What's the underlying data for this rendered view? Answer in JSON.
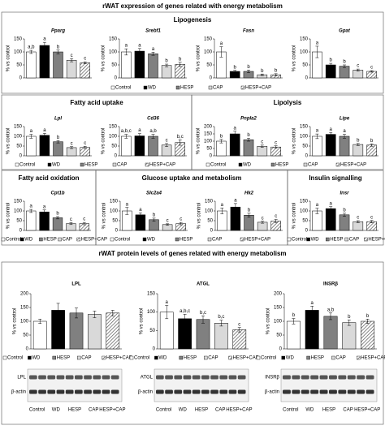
{
  "title": "rWAT expression of genes related with energy metabolism",
  "sections": [
    "Lipogenesis",
    "Fatty acid uptake",
    "Lipolysis",
    "Fatty acid oxidation",
    "Glucose uptake and metabolism",
    "Insulin signalling"
  ],
  "protein_title": "rWAT protein levels of genes related with energy metabolism",
  "blot_lanes": [
    "Control",
    "WD",
    "HESP",
    "CAP",
    "HESP+CAP"
  ],
  "blots": [
    {
      "rows": [
        "LPL",
        "β-actin"
      ]
    },
    {
      "rows": [
        "ATGL",
        "β-actin"
      ]
    },
    {
      "rows": [
        "INSRβ",
        "β-actin"
      ]
    }
  ],
  "chart_data": [
    {
      "type": "bar",
      "title": "Pparg",
      "ylabel": "% vs control",
      "categories": [
        "Control",
        "WD",
        "HESP",
        "CAP",
        "HESP+CAP"
      ],
      "values": [
        100,
        125,
        100,
        68,
        58
      ],
      "errors": [
        6,
        12,
        7,
        6,
        4
      ],
      "annotations": [
        "a,b",
        "a",
        "b",
        "c",
        "c"
      ],
      "colors": [
        "#ffffff",
        "#000000",
        "#808080",
        "#d9d9d9",
        "#ffffff"
      ],
      "hatch": [
        false,
        false,
        false,
        false,
        true
      ],
      "ylim": [
        0,
        150
      ],
      "yticks": [
        0,
        50,
        100,
        150
      ]
    },
    {
      "type": "bar",
      "title": "Srebf1",
      "ylabel": "% vs control",
      "categories": [
        "Control",
        "WD",
        "HESP",
        "CAP",
        "HESP+CAP"
      ],
      "values": [
        100,
        103,
        93,
        48,
        52
      ],
      "errors": [
        12,
        10,
        6,
        5,
        8
      ],
      "annotations": [
        "a",
        "a",
        "a",
        "b",
        "b"
      ],
      "colors": [
        "#ffffff",
        "#000000",
        "#808080",
        "#d9d9d9",
        "#ffffff"
      ],
      "hatch": [
        false,
        false,
        false,
        false,
        true
      ],
      "ylim": [
        0,
        150
      ],
      "yticks": [
        0,
        50,
        100,
        150
      ]
    },
    {
      "type": "bar",
      "title": "Fasn",
      "ylabel": "% vs control",
      "categories": [
        "Control",
        "WD",
        "HESP",
        "CAP",
        "HESP+CAP"
      ],
      "values": [
        100,
        25,
        25,
        12,
        12
      ],
      "errors": [
        20,
        4,
        5,
        3,
        4
      ],
      "annotations": [
        "a",
        "b",
        "b",
        "b",
        "b"
      ],
      "colors": [
        "#ffffff",
        "#000000",
        "#808080",
        "#d9d9d9",
        "#ffffff"
      ],
      "hatch": [
        false,
        false,
        false,
        false,
        true
      ],
      "ylim": [
        0,
        150
      ],
      "yticks": [
        0,
        50,
        100,
        150
      ]
    },
    {
      "type": "bar",
      "title": "Gpat",
      "ylabel": "% vs control",
      "categories": [
        "Control",
        "WD",
        "HESP",
        "CAP",
        "HESP+CAP"
      ],
      "values": [
        100,
        50,
        45,
        30,
        25
      ],
      "errors": [
        22,
        6,
        5,
        4,
        3
      ],
      "annotations": [
        "a",
        "b",
        "b",
        "c",
        "c"
      ],
      "colors": [
        "#ffffff",
        "#000000",
        "#808080",
        "#d9d9d9",
        "#ffffff"
      ],
      "hatch": [
        false,
        false,
        false,
        false,
        true
      ],
      "ylim": [
        0,
        150
      ],
      "yticks": [
        0,
        50,
        100,
        150
      ]
    },
    {
      "type": "bar",
      "title": "Lpl",
      "ylabel": "% vs control",
      "categories": [
        "Control",
        "WD",
        "HESP",
        "CAP",
        "HESP+CAP"
      ],
      "values": [
        100,
        105,
        72,
        42,
        43
      ],
      "errors": [
        10,
        10,
        6,
        5,
        6
      ],
      "annotations": [
        "a",
        "a",
        "b",
        "c",
        "c"
      ],
      "colors": [
        "#ffffff",
        "#000000",
        "#808080",
        "#d9d9d9",
        "#ffffff"
      ],
      "hatch": [
        false,
        false,
        false,
        false,
        true
      ],
      "ylim": [
        0,
        150
      ],
      "yticks": [
        0,
        50,
        100,
        150
      ]
    },
    {
      "type": "bar",
      "title": "Cd36",
      "ylabel": "% vs control",
      "categories": [
        "Control",
        "WD",
        "HESP",
        "CAP",
        "HESP+CAP"
      ],
      "values": [
        100,
        102,
        100,
        55,
        68
      ],
      "errors": [
        10,
        12,
        10,
        8,
        14
      ],
      "annotations": [
        "a,b,c",
        "a",
        "a,b",
        "c",
        "b,c"
      ],
      "colors": [
        "#ffffff",
        "#000000",
        "#808080",
        "#d9d9d9",
        "#ffffff"
      ],
      "hatch": [
        false,
        false,
        false,
        false,
        true
      ],
      "ylim": [
        0,
        150
      ],
      "yticks": [
        0,
        50,
        100,
        150
      ]
    },
    {
      "type": "bar",
      "title": "Pnpla2",
      "ylabel": "% vs control",
      "categories": [
        "Control",
        "WD",
        "HESP",
        "CAP",
        "HESP+CAP"
      ],
      "values": [
        100,
        150,
        110,
        65,
        60
      ],
      "errors": [
        12,
        18,
        10,
        8,
        8
      ],
      "annotations": [
        "b",
        "a",
        "b",
        "c",
        "c"
      ],
      "colors": [
        "#ffffff",
        "#000000",
        "#808080",
        "#d9d9d9",
        "#ffffff"
      ],
      "hatch": [
        false,
        false,
        false,
        false,
        true
      ],
      "ylim": [
        0,
        200
      ],
      "yticks": [
        0,
        50,
        100,
        150,
        200
      ]
    },
    {
      "type": "bar",
      "title": "Lipe",
      "ylabel": "% vs control",
      "categories": [
        "Control",
        "WD",
        "HESP",
        "CAP",
        "HESP+CAP"
      ],
      "values": [
        100,
        110,
        100,
        58,
        55
      ],
      "errors": [
        12,
        10,
        10,
        5,
        6
      ],
      "annotations": [
        "a",
        "a",
        "a",
        "b",
        "b"
      ],
      "colors": [
        "#ffffff",
        "#000000",
        "#808080",
        "#d9d9d9",
        "#ffffff"
      ],
      "hatch": [
        false,
        false,
        false,
        false,
        true
      ],
      "ylim": [
        0,
        150
      ],
      "yticks": [
        0,
        50,
        100,
        150
      ]
    },
    {
      "type": "bar",
      "title": "Cpt1b",
      "ylabel": "% vs control",
      "categories": [
        "Control",
        "WD",
        "HESP",
        "CAP",
        "HESP+CAP"
      ],
      "values": [
        100,
        95,
        65,
        35,
        35
      ],
      "errors": [
        8,
        10,
        6,
        5,
        6
      ],
      "annotations": [
        "a",
        "a",
        "b",
        "c",
        "c"
      ],
      "colors": [
        "#ffffff",
        "#000000",
        "#808080",
        "#d9d9d9",
        "#ffffff"
      ],
      "hatch": [
        false,
        false,
        false,
        false,
        true
      ],
      "ylim": [
        0,
        150
      ],
      "yticks": [
        0,
        50,
        100,
        150
      ]
    },
    {
      "type": "bar",
      "title": "Slc2a4",
      "ylabel": "% vs control",
      "categories": [
        "Control",
        "WD",
        "HESP",
        "CAP",
        "HESP+CAP"
      ],
      "values": [
        100,
        80,
        55,
        30,
        35
      ],
      "errors": [
        18,
        10,
        8,
        4,
        6
      ],
      "annotations": [
        "a",
        "a",
        "b",
        "c",
        "c"
      ],
      "colors": [
        "#ffffff",
        "#000000",
        "#808080",
        "#d9d9d9",
        "#ffffff"
      ],
      "hatch": [
        false,
        false,
        false,
        false,
        true
      ],
      "ylim": [
        0,
        150
      ],
      "yticks": [
        0,
        50,
        100,
        150
      ]
    },
    {
      "type": "bar",
      "title": "Hk2",
      "ylabel": "% vs control",
      "categories": [
        "Control",
        "WD",
        "HESP",
        "CAP",
        "HESP+CAP"
      ],
      "values": [
        100,
        120,
        78,
        42,
        48
      ],
      "errors": [
        15,
        18,
        10,
        5,
        8
      ],
      "annotations": [
        "a",
        "a",
        "b",
        "c",
        "c"
      ],
      "colors": [
        "#ffffff",
        "#000000",
        "#808080",
        "#d9d9d9",
        "#ffffff"
      ],
      "hatch": [
        false,
        false,
        false,
        false,
        true
      ],
      "ylim": [
        0,
        150
      ],
      "yticks": [
        0,
        50,
        100,
        150
      ]
    },
    {
      "type": "bar",
      "title": "Insr",
      "ylabel": "% vs control",
      "categories": [
        "Control",
        "WD",
        "HESP",
        "CAP",
        "HESP+CAP"
      ],
      "values": [
        100,
        112,
        80,
        45,
        45
      ],
      "errors": [
        14,
        10,
        8,
        5,
        6
      ],
      "annotations": [
        "a",
        "a",
        "b",
        "c",
        "c"
      ],
      "colors": [
        "#ffffff",
        "#000000",
        "#808080",
        "#d9d9d9",
        "#ffffff"
      ],
      "hatch": [
        false,
        false,
        false,
        false,
        true
      ],
      "ylim": [
        0,
        150
      ],
      "yticks": [
        0,
        50,
        100,
        150
      ]
    },
    {
      "type": "bar",
      "title": "LPL",
      "ylabel": "% vs control",
      "categories": [
        "Control",
        "WD",
        "HESP",
        "CAP",
        "HESP+CAP"
      ],
      "values": [
        100,
        140,
        130,
        125,
        130
      ],
      "errors": [
        8,
        25,
        18,
        12,
        10
      ],
      "colors": [
        "#ffffff",
        "#000000",
        "#808080",
        "#d9d9d9",
        "#ffffff"
      ],
      "hatch": [
        false,
        false,
        false,
        false,
        true
      ],
      "ylim": [
        0,
        200
      ],
      "yticks": [
        0,
        50,
        100,
        150,
        200
      ]
    },
    {
      "type": "bar",
      "title": "ATGL",
      "ylabel": "% vs control",
      "categories": [
        "Control",
        "WD",
        "HESP",
        "CAP",
        "HESP+CAP"
      ],
      "values": [
        100,
        82,
        80,
        70,
        52
      ],
      "errors": [
        18,
        12,
        10,
        8,
        6
      ],
      "annotations": [
        "a",
        "a,b,c",
        "b,c",
        "b,c",
        "c"
      ],
      "colors": [
        "#ffffff",
        "#000000",
        "#808080",
        "#d9d9d9",
        "#ffffff"
      ],
      "hatch": [
        false,
        false,
        false,
        false,
        true
      ],
      "ylim": [
        0,
        150
      ],
      "yticks": [
        0,
        50,
        100,
        150
      ]
    },
    {
      "type": "bar",
      "title": "INSRβ",
      "ylabel": "% vs control",
      "categories": [
        "Control",
        "WD",
        "HESP",
        "CAP",
        "HESP+CAP"
      ],
      "values": [
        100,
        140,
        118,
        95,
        100
      ],
      "errors": [
        10,
        15,
        12,
        10,
        8
      ],
      "annotations": [
        "b",
        "a",
        "a,b",
        "b",
        "b"
      ],
      "colors": [
        "#ffffff",
        "#000000",
        "#808080",
        "#d9d9d9",
        "#ffffff"
      ],
      "hatch": [
        false,
        false,
        false,
        false,
        true
      ],
      "ylim": [
        0,
        200
      ],
      "yticks": [
        0,
        50,
        100,
        150,
        200
      ]
    }
  ]
}
